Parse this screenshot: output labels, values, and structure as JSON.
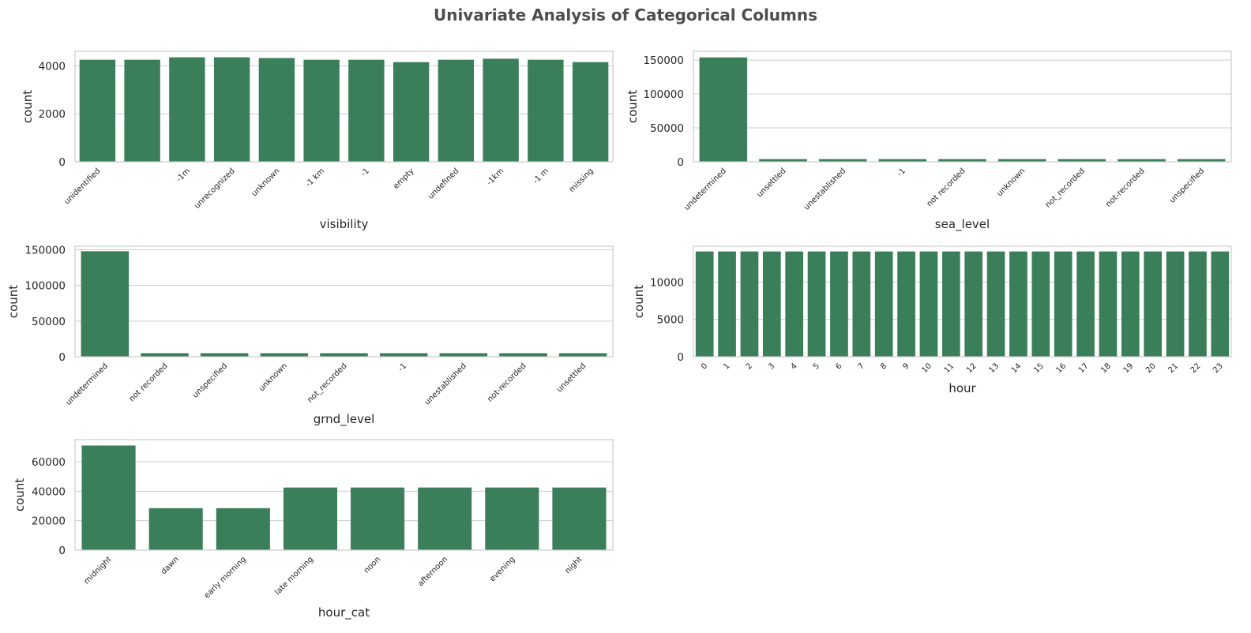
{
  "figure": {
    "title": "Univariate Analysis of Categorical Columns",
    "bar_color": "#3a7f59"
  },
  "chart_data": [
    {
      "type": "bar",
      "xlabel": "visibility",
      "ylabel": "count",
      "categories": [
        "unidentified",
        "",
        "-1m",
        "unrecognized",
        "unknown",
        "-1 km",
        "-1",
        "empty",
        "undefined",
        "-1km",
        "-1 m",
        "missing"
      ],
      "values": [
        4250,
        4250,
        4350,
        4350,
        4320,
        4250,
        4250,
        4150,
        4250,
        4290,
        4250,
        4150
      ],
      "ylim": [
        0,
        4600
      ],
      "yticks": [
        0,
        2000,
        4000
      ],
      "grid": true
    },
    {
      "type": "bar",
      "xlabel": "sea_level",
      "ylabel": "count",
      "categories": [
        "undetermined",
        "unsettled",
        "unestablished",
        "-1",
        "not recorded",
        "unknown",
        "not_recorded",
        "not-recorded",
        "unspecified"
      ],
      "values": [
        154000,
        4000,
        4000,
        4000,
        4000,
        4000,
        4000,
        4000,
        4000
      ],
      "ylim": [
        0,
        163000
      ],
      "yticks": [
        0,
        50000,
        100000,
        150000
      ],
      "grid": true
    },
    {
      "type": "bar",
      "xlabel": "grnd_level",
      "ylabel": "count",
      "categories": [
        "undetermined",
        "not recorded",
        "unspecified",
        "unknown",
        "not_recorded",
        "-1",
        "unestablished",
        "not-recorded",
        "unsettled"
      ],
      "values": [
        148000,
        5000,
        5000,
        5000,
        5000,
        5000,
        5000,
        5000,
        5000
      ],
      "ylim": [
        0,
        155000
      ],
      "yticks": [
        0,
        50000,
        100000,
        150000
      ],
      "grid": true
    },
    {
      "type": "bar",
      "xlabel": "hour",
      "ylabel": "count",
      "categories": [
        "0",
        "1",
        "2",
        "3",
        "4",
        "5",
        "6",
        "7",
        "8",
        "9",
        "10",
        "11",
        "12",
        "13",
        "14",
        "15",
        "16",
        "17",
        "18",
        "19",
        "20",
        "21",
        "22",
        "23"
      ],
      "values": [
        14100,
        14100,
        14100,
        14100,
        14100,
        14100,
        14100,
        14100,
        14100,
        14100,
        14100,
        14100,
        14100,
        14100,
        14100,
        14100,
        14100,
        14100,
        14100,
        14100,
        14100,
        14100,
        14100,
        14100
      ],
      "ylim": [
        0,
        14800
      ],
      "yticks": [
        0,
        5000,
        10000
      ],
      "grid": true
    },
    {
      "type": "bar",
      "xlabel": "hour_cat",
      "ylabel": "count",
      "categories": [
        "midnight",
        "dawn",
        "early morning",
        "late morning",
        "noon",
        "afternoon",
        "evening",
        "night"
      ],
      "values": [
        71000,
        28500,
        28500,
        42500,
        42500,
        42500,
        42500,
        42500
      ],
      "ylim": [
        0,
        75000
      ],
      "yticks": [
        0,
        20000,
        40000,
        60000
      ],
      "grid": true
    }
  ]
}
